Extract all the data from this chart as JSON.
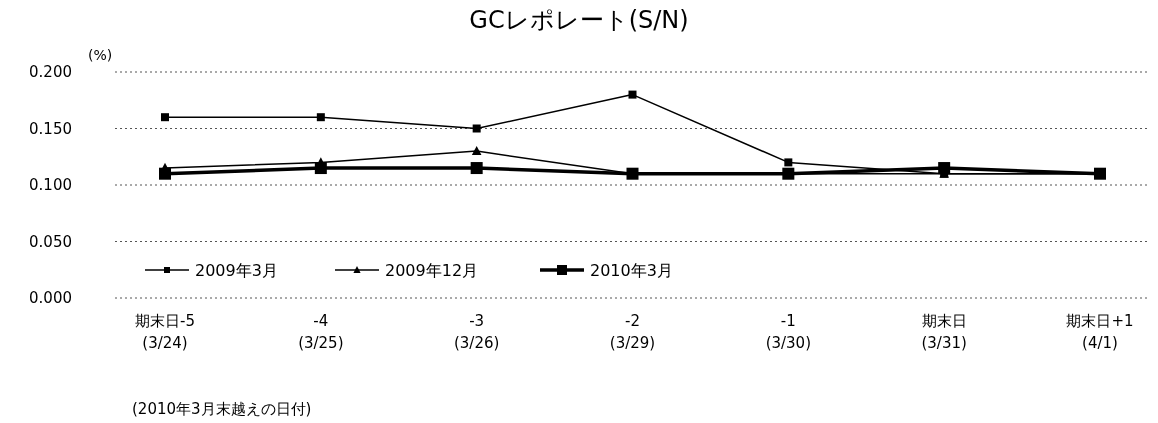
{
  "chart_data": {
    "type": "line",
    "title": "GCレポレート(S/N)",
    "ylabel": "(%)",
    "categories": [
      "期末日-5\n(3/24)",
      "-4\n(3/25)",
      "-3\n(3/26)",
      "-2\n(3/29)",
      "-1\n(3/30)",
      "期末日\n(3/31)",
      "期末日+1\n(4/1)"
    ],
    "series": [
      {
        "name": "2009年3月",
        "color": "#000000",
        "marker": "square",
        "values": [
          0.16,
          0.16,
          0.15,
          0.18,
          0.12,
          0.11,
          0.11
        ]
      },
      {
        "name": "2009年12月",
        "color": "#000000",
        "marker": "triangle",
        "values": [
          0.115,
          0.12,
          0.13,
          0.11,
          0.11,
          0.11,
          0.11
        ]
      },
      {
        "name": "2010年3月",
        "color": "#000000",
        "marker": "square",
        "values": [
          0.11,
          0.115,
          0.115,
          0.11,
          0.11,
          0.115,
          0.11
        ]
      }
    ],
    "ylim": [
      0,
      0.2
    ],
    "yticks": [
      {
        "value": 0,
        "label": "0.000"
      },
      {
        "value": 0.05,
        "label": "0.050"
      },
      {
        "value": 0.1,
        "label": "0.100"
      },
      {
        "value": 0.15,
        "label": "0.150"
      },
      {
        "value": 0.2,
        "label": "0.200"
      }
    ],
    "grid": "y",
    "legend": "bottom left",
    "line_style": "solid",
    "annotations": [
      "(2010年3月末越えの日付)"
    ]
  }
}
